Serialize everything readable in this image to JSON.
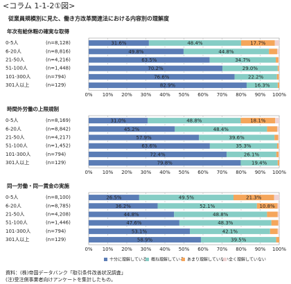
{
  "title": "<コラム 1-1-2①図>",
  "subtitle": "従業員規模別に見た、働き方改革関連法における内容別の理解度",
  "legend": [
    {
      "name": "十分に理解している",
      "color": "#5b7db6"
    },
    {
      "name": "概ね理解している",
      "color": "#86cdc5"
    },
    {
      "name": "あまり理解していない",
      "color": "#f5a65b"
    },
    {
      "name": "全く理解していない",
      "color": "#efd3d3"
    }
  ],
  "notes": [
    "資料：(株)帝国データバンク「取引条件改善状況調査」",
    "(注)受注側事業者向けアンケートを集計したもの。"
  ],
  "chart_data": [
    {
      "type": "bar",
      "orientation": "horizontal",
      "stacked": true,
      "title": "年次有給休暇の確実な取得",
      "categories": [
        "0-5人",
        "6-20人",
        "21-50人",
        "51-100人",
        "101-300人",
        "301人以上"
      ],
      "n_labels": [
        "(n=8,128)",
        "(n=8,816)",
        "(n=4,216)",
        "(n=1,448)",
        "(n=794)",
        "(n=129)"
      ],
      "series": [
        {
          "values": [
            31.6,
            49.8,
            63.5,
            70.2,
            76.6,
            82.9
          ],
          "value_labels": [
            "31.6%",
            "49.8%",
            "63.5%",
            "70.2%",
            "76.6%",
            "82.9%"
          ]
        },
        {
          "values": [
            48.4,
            44.8,
            34.7,
            29.0,
            22.2,
            16.3
          ],
          "value_labels": [
            "48.4%",
            "44.8%",
            "34.7%",
            "29.0%",
            "22.2%",
            "16.3%"
          ]
        },
        {
          "values": [
            17.7,
            4.3,
            1.4,
            0.6,
            1.0,
            0.8
          ],
          "value_labels": [
            "17.7%",
            null,
            null,
            null,
            null,
            null
          ]
        },
        {
          "values": [
            2.3,
            1.1,
            0.4,
            0.2,
            0.2,
            0
          ],
          "value_labels": [
            null,
            null,
            null,
            null,
            null,
            null
          ]
        }
      ],
      "xlim": [
        0,
        100
      ],
      "xticks": [
        {
          "value": 0,
          "label": "0%"
        },
        {
          "value": 10,
          "label": "10%"
        },
        {
          "value": 20,
          "label": "20%"
        },
        {
          "value": 30,
          "label": "30%"
        },
        {
          "value": 40,
          "label": "40%"
        },
        {
          "value": 50,
          "label": "50%"
        },
        {
          "value": 60,
          "label": "60%"
        },
        {
          "value": 70,
          "label": "70%"
        },
        {
          "value": 80,
          "label": "80%"
        },
        {
          "value": 90,
          "label": "90%"
        },
        {
          "value": 100,
          "label": "100%"
        }
      ],
      "grid": true
    },
    {
      "type": "bar",
      "orientation": "horizontal",
      "stacked": true,
      "title": "時間外労働の上限規制",
      "categories": [
        "0-5人",
        "6-20人",
        "21-50人",
        "51-100人",
        "101-300人",
        "301人以上"
      ],
      "n_labels": [
        "(n=8,169)",
        "(n=8,842)",
        "(n=4,217)",
        "(n=1,452)",
        "(n=794)",
        "(n=129)"
      ],
      "series": [
        {
          "values": [
            31.0,
            45.2,
            57.9,
            63.6,
            72.4,
            79.8
          ],
          "value_labels": [
            "31.0%",
            "45.2%",
            "57.9%",
            "63.6%",
            "72.4%",
            "79.8%"
          ]
        },
        {
          "values": [
            48.8,
            48.4,
            39.6,
            35.3,
            26.1,
            19.4
          ],
          "value_labels": [
            "48.8%",
            "48.4%",
            "39.6%",
            "35.3%",
            "26.1%",
            "19.4%"
          ]
        },
        {
          "values": [
            18.1,
            5.3,
            2.0,
            0.8,
            1.2,
            0.8
          ],
          "value_labels": [
            "18.1%",
            null,
            null,
            null,
            null,
            null
          ]
        },
        {
          "values": [
            2.1,
            1.1,
            0.5,
            0.3,
            0.3,
            0
          ],
          "value_labels": [
            null,
            null,
            null,
            null,
            null,
            null
          ]
        }
      ],
      "xlim": [
        0,
        100
      ],
      "xticks": [
        {
          "value": 0,
          "label": "0%"
        },
        {
          "value": 10,
          "label": "10%"
        },
        {
          "value": 20,
          "label": "20%"
        },
        {
          "value": 30,
          "label": "30%"
        },
        {
          "value": 40,
          "label": "40%"
        },
        {
          "value": 50,
          "label": "50%"
        },
        {
          "value": 60,
          "label": "60%"
        },
        {
          "value": 70,
          "label": "70%"
        },
        {
          "value": 80,
          "label": "80%"
        },
        {
          "value": 90,
          "label": "90%"
        },
        {
          "value": 100,
          "label": "100%"
        }
      ],
      "grid": true
    },
    {
      "type": "bar",
      "orientation": "horizontal",
      "stacked": true,
      "title": "同一労働・同一賃金の実施",
      "categories": [
        "0-5人",
        "6-20人",
        "21-50人",
        "51-100人",
        "101-300人",
        "301人以上"
      ],
      "n_labels": [
        "(n=8,100)",
        "(n=8,785)",
        "(n=4,208)",
        "(n=1,446)",
        "(n=794)",
        "(n=129)"
      ],
      "series": [
        {
          "values": [
            26.5,
            36.2,
            44.8,
            47.6,
            53.1,
            58.9
          ],
          "value_labels": [
            "26.5%",
            "36.2%",
            "44.8%",
            "47.6%",
            "53.1%",
            "58.9%"
          ]
        },
        {
          "values": [
            49.5,
            52.1,
            48.8,
            48.3,
            42.1,
            39.5
          ],
          "value_labels": [
            "49.5%",
            "52.1%",
            "48.8%",
            "48.3%",
            "42.1%",
            "39.5%"
          ]
        },
        {
          "values": [
            21.3,
            10.8,
            5.6,
            3.6,
            4.0,
            1.6
          ],
          "value_labels": [
            "21.3%",
            "10.8%",
            null,
            null,
            null,
            null
          ]
        },
        {
          "values": [
            2.7,
            0.9,
            0.8,
            0.5,
            0.8,
            0
          ],
          "value_labels": [
            null,
            null,
            null,
            null,
            null,
            null
          ]
        }
      ],
      "xlim": [
        0,
        100
      ],
      "xticks": [
        {
          "value": 0,
          "label": "0%"
        },
        {
          "value": 10,
          "label": "10%"
        },
        {
          "value": 20,
          "label": "20%"
        },
        {
          "value": 30,
          "label": "30%"
        },
        {
          "value": 40,
          "label": "40%"
        },
        {
          "value": 50,
          "label": "50%"
        },
        {
          "value": 60,
          "label": "60%"
        },
        {
          "value": 70,
          "label": "70%"
        },
        {
          "value": 80,
          "label": "80%"
        },
        {
          "value": 90,
          "label": "90%"
        },
        {
          "value": 100,
          "label": "100%"
        }
      ],
      "grid": true
    }
  ]
}
